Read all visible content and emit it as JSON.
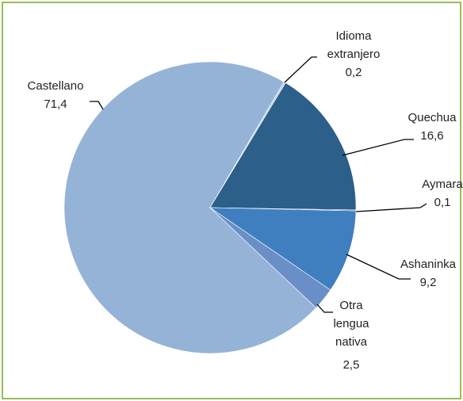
{
  "chart_data": {
    "type": "pie",
    "categories": [
      "Castellano",
      "Idioma extranjero",
      "Quechua",
      "Aymara",
      "Ashaninka",
      "Otra lengua nativa"
    ],
    "values": [
      71.4,
      0.2,
      16.6,
      0.1,
      9.2,
      2.5
    ],
    "value_labels": [
      "71,4",
      "0,2",
      "16,6",
      "0,1",
      "9,2",
      "2,5"
    ],
    "colors": [
      "#95b3d7",
      "#b9cde5",
      "#2c5f8a",
      "#1f497d",
      "#3f7fbf",
      "#6a8fc8"
    ]
  }
}
